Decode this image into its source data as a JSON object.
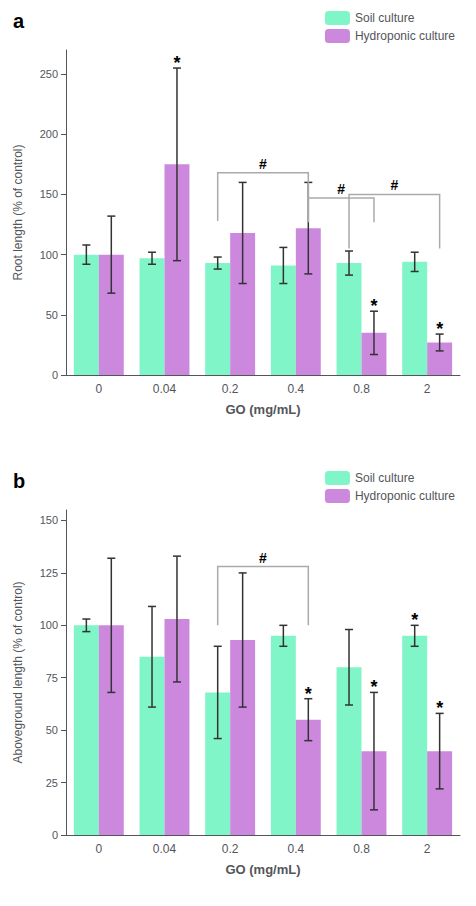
{
  "chart_data": [
    {
      "type": "bar",
      "title": "a",
      "categories": [
        "0",
        "0.04",
        "0.2",
        "0.4",
        "0.8",
        "2"
      ],
      "xlabel": "GO (mg/mL)",
      "ylabel": "Root length (% of control)",
      "ylim": [
        0,
        270
      ],
      "yticks": [
        0,
        50,
        100,
        150,
        200,
        250
      ],
      "grid": false,
      "legend": "upper right",
      "series": [
        {
          "name": "Soil culture",
          "color": "#80F5C8",
          "values": [
            100,
            97,
            93,
            91,
            93,
            94
          ],
          "errors": [
            8,
            5,
            5,
            15,
            10,
            8
          ]
        },
        {
          "name": "Hydroponic culture",
          "color": "#CC88DD",
          "values": [
            100,
            175,
            118,
            122,
            35,
            27
          ],
          "errors": [
            32,
            80,
            42,
            38,
            18,
            7
          ]
        }
      ],
      "annotations": [
        {
          "text": "*",
          "category": "0.04",
          "series": "Hydroponic culture"
        },
        {
          "text": "#",
          "from": {
            "category": "0.2",
            "series": "Soil culture"
          },
          "to": {
            "category": "0.4",
            "series": "Hydroponic culture"
          },
          "y_bottom": 128,
          "y_top": 168
        },
        {
          "text": "#",
          "from": {
            "category": "0.4",
            "series": "Hydroponic culture"
          },
          "to": {
            "category": "0.8",
            "series": "Hydroponic culture"
          },
          "y_bottom": 127,
          "y_top": 147
        },
        {
          "text": "#",
          "from": {
            "category": "0.8",
            "series": "Soil culture"
          },
          "to": {
            "category": "2",
            "series": "Hydroponic culture"
          },
          "y_bottom": 105,
          "y_top": 150
        },
        {
          "text": "*",
          "category": "0.8",
          "series": "Hydroponic culture"
        },
        {
          "text": "*",
          "category": "2",
          "series": "Hydroponic culture"
        }
      ]
    },
    {
      "type": "bar",
      "title": "b",
      "categories": [
        "0",
        "0.04",
        "0.2",
        "0.4",
        "0.8",
        "2"
      ],
      "xlabel": "GO (mg/mL)",
      "ylabel": "Aboveground length (% of control)",
      "ylim": [
        0,
        155
      ],
      "yticks": [
        0,
        25,
        50,
        75,
        100,
        125,
        150
      ],
      "grid": false,
      "legend": "upper right",
      "series": [
        {
          "name": "Soil culture",
          "color": "#80F5C8",
          "values": [
            100,
            85,
            68,
            95,
            80,
            95
          ],
          "errors": [
            3,
            24,
            22,
            5,
            18,
            5
          ]
        },
        {
          "name": "Hydroponic culture",
          "color": "#CC88DD",
          "values": [
            100,
            103,
            93,
            55,
            40,
            40
          ],
          "errors": [
            32,
            30,
            32,
            10,
            28,
            18
          ]
        }
      ],
      "annotations": [
        {
          "text": "#",
          "from": {
            "category": "0.2",
            "series": "Soil culture"
          },
          "to": {
            "category": "0.4",
            "series": "Hydroponic culture"
          },
          "y_bottom": 100,
          "y_top": 128
        },
        {
          "text": "*",
          "category": "0.4",
          "series": "Hydroponic culture"
        },
        {
          "text": "*",
          "category": "0.8",
          "series": "Hydroponic culture"
        },
        {
          "text": "*",
          "category": "2",
          "series": "Soil culture"
        },
        {
          "text": "*",
          "category": "2",
          "series": "Hydroponic culture"
        }
      ]
    }
  ]
}
